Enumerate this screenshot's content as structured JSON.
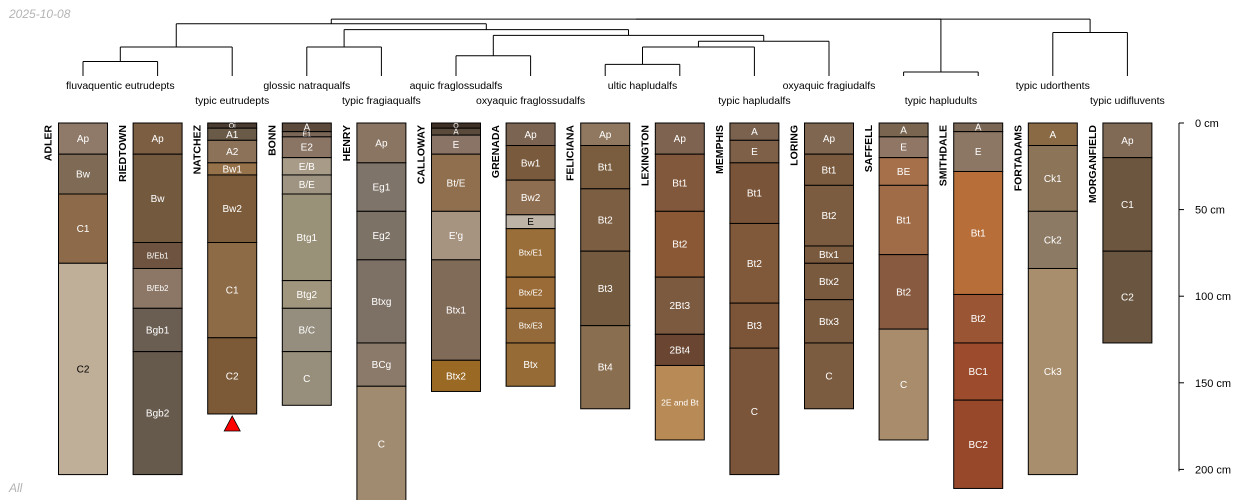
{
  "meta": {
    "date": "2025-10-08",
    "footer": "All"
  },
  "depth_axis": {
    "unit": "cm",
    "max": 200,
    "ticks": [
      0,
      50,
      100,
      150,
      200
    ]
  },
  "dendrogram": {
    "leaf_order": [
      "ADLER",
      "RIEDTOWN",
      "NATCHEZ",
      "BONN",
      "HENRY",
      "CALLOWAY",
      "GRENADA",
      "FELICIANA",
      "LEXINGTON",
      "MEMPHIS",
      "LORING",
      "SAFFELL",
      "SMITHDALE",
      "FORTADAMS",
      "MORGANFIELD"
    ],
    "merges": [
      {
        "left": "ADLER",
        "right": "RIEDTOWN",
        "height": 2.5
      },
      {
        "left": "m0",
        "right": "NATCHEZ",
        "height": 5.0
      },
      {
        "left": "BONN",
        "right": "HENRY",
        "height": 5.0
      },
      {
        "left": "CALLOWAY",
        "right": "GRENADA",
        "height": 3.5
      },
      {
        "left": "FELICIANA",
        "right": "LEXINGTON",
        "height": 2.0
      },
      {
        "left": "m4",
        "right": "MEMPHIS",
        "height": 5.0
      },
      {
        "left": "m5",
        "right": "LORING",
        "height": 6.0
      },
      {
        "left": "m3",
        "right": "m6",
        "height": 7.0
      },
      {
        "left": "m2",
        "right": "m7",
        "height": 8.0
      },
      {
        "left": "SAFFELL",
        "right": "SMITHDALE",
        "height": 0.7
      },
      {
        "left": "FORTADAMS",
        "right": "MORGANFIELD",
        "height": 7.5
      },
      {
        "left": "m1",
        "right": "m8",
        "height": 9.0
      },
      {
        "left": "m11",
        "right": "m9",
        "height": 9.8
      },
      {
        "left": "m10",
        "right": "m12",
        "height": 9.8
      }
    ]
  },
  "taxa": [
    {
      "text": "fluvaquentic eutrudepts",
      "group": [
        0,
        1
      ],
      "row": 1
    },
    {
      "text": "typic eutrudepts",
      "group": [
        2,
        2
      ],
      "row": 2
    },
    {
      "text": "glossic natraqualfs",
      "group": [
        3,
        3
      ],
      "row": 1
    },
    {
      "text": "typic fragiaqualfs",
      "group": [
        4,
        4
      ],
      "row": 2
    },
    {
      "text": "aquic fraglossudalfs",
      "group": [
        5,
        5
      ],
      "row": 1
    },
    {
      "text": "oxyaquic fraglossudalfs",
      "group": [
        6,
        6
      ],
      "row": 2
    },
    {
      "text": "ultic hapludalfs",
      "group": [
        7,
        8
      ],
      "row": 1
    },
    {
      "text": "typic hapludalfs",
      "group": [
        9,
        9
      ],
      "row": 2
    },
    {
      "text": "oxyaquic fragiudalfs",
      "group": [
        10,
        10
      ],
      "row": 1
    },
    {
      "text": "typic hapludults",
      "group": [
        11,
        12
      ],
      "row": 2
    },
    {
      "text": "typic udorthents",
      "group": [
        13,
        13
      ],
      "row": 1
    },
    {
      "text": "typic udifluvents",
      "group": [
        14,
        14
      ],
      "row": 2
    }
  ],
  "profiles": [
    {
      "name": "ADLER",
      "horizons": [
        {
          "name": "Ap",
          "top": 0,
          "bottom": 18,
          "color": "#8f7a69"
        },
        {
          "name": "Bw",
          "top": 18,
          "bottom": 41,
          "color": "#7e6a55"
        },
        {
          "name": "C1",
          "top": 41,
          "bottom": 81,
          "color": "#8c6a4a"
        },
        {
          "name": "C2",
          "top": 81,
          "bottom": 203,
          "color": "#bfae98"
        }
      ]
    },
    {
      "name": "RIEDTOWN",
      "horizons": [
        {
          "name": "Ap",
          "top": 0,
          "bottom": 18,
          "color": "#7c5f43"
        },
        {
          "name": "Bw",
          "top": 18,
          "bottom": 69,
          "color": "#735a3f"
        },
        {
          "name": "B/Eb1",
          "top": 69,
          "bottom": 84,
          "color": "#6e5440"
        },
        {
          "name": "B/Eb2",
          "top": 84,
          "bottom": 107,
          "color": "#8c7766"
        },
        {
          "name": "Bgb1",
          "top": 107,
          "bottom": 132,
          "color": "#6a5d52"
        },
        {
          "name": "Bgb2",
          "top": 132,
          "bottom": 203,
          "color": "#665a4d"
        }
      ]
    },
    {
      "name": "NATCHEZ",
      "marker": true,
      "horizons": [
        {
          "name": "Oi",
          "top": 0,
          "bottom": 3,
          "color": "#4a3c30"
        },
        {
          "name": "A1",
          "top": 3,
          "bottom": 10,
          "color": "#6a5a48"
        },
        {
          "name": "A2",
          "top": 10,
          "bottom": 23,
          "color": "#8b7259"
        },
        {
          "name": "Bw1",
          "top": 23,
          "bottom": 30,
          "color": "#96724a"
        },
        {
          "name": "Bw2",
          "top": 30,
          "bottom": 69,
          "color": "#7c5c3a"
        },
        {
          "name": "C1",
          "top": 69,
          "bottom": 124,
          "color": "#8e6b47"
        },
        {
          "name": "C2",
          "top": 124,
          "bottom": 168,
          "color": "#7c5a38"
        }
      ]
    },
    {
      "name": "BONN",
      "horizons": [
        {
          "name": "A",
          "top": 0,
          "bottom": 5,
          "color": "#5c4a3c"
        },
        {
          "name": "E1",
          "top": 5,
          "bottom": 8,
          "color": "#7a6656"
        },
        {
          "name": "E2",
          "top": 8,
          "bottom": 20,
          "color": "#8a7464"
        },
        {
          "name": "E/B",
          "top": 20,
          "bottom": 30,
          "color": "#a89c88"
        },
        {
          "name": "B/E",
          "top": 30,
          "bottom": 41,
          "color": "#9f9481"
        },
        {
          "name": "Btg1",
          "top": 41,
          "bottom": 91,
          "color": "#9a9278"
        },
        {
          "name": "Btg2",
          "top": 91,
          "bottom": 107,
          "color": "#a0957d"
        },
        {
          "name": "B/C",
          "top": 107,
          "bottom": 132,
          "color": "#958e7f"
        },
        {
          "name": "C",
          "top": 132,
          "bottom": 163,
          "color": "#978f7c"
        }
      ]
    },
    {
      "name": "HENRY",
      "horizons": [
        {
          "name": "Ap",
          "top": 0,
          "bottom": 23,
          "color": "#8a7462"
        },
        {
          "name": "Eg1",
          "top": 23,
          "bottom": 51,
          "color": "#7f7469"
        },
        {
          "name": "Eg2",
          "top": 51,
          "bottom": 79,
          "color": "#7d7266"
        },
        {
          "name": "Btxg",
          "top": 79,
          "bottom": 127,
          "color": "#7d7165"
        },
        {
          "name": "BCg",
          "top": 127,
          "bottom": 152,
          "color": "#8b7a6a"
        },
        {
          "name": "C",
          "top": 152,
          "bottom": 220,
          "color": "#a08b70"
        }
      ]
    },
    {
      "name": "CALLOWAY",
      "horizons": [
        {
          "name": "O",
          "top": 0,
          "bottom": 3,
          "color": "#3e3026"
        },
        {
          "name": "A",
          "top": 3,
          "bottom": 7,
          "color": "#5a4a3c"
        },
        {
          "name": "E",
          "top": 7,
          "bottom": 18,
          "color": "#8a7466"
        },
        {
          "name": "Bt/E",
          "top": 18,
          "bottom": 51,
          "color": "#8f6f4e"
        },
        {
          "name": "E'g",
          "top": 51,
          "bottom": 79,
          "color": "#a69380"
        },
        {
          "name": "Btx1",
          "top": 79,
          "bottom": 137,
          "color": "#806a58"
        },
        {
          "name": "Btx2",
          "top": 137,
          "bottom": 155,
          "color": "#9a6a24"
        }
      ]
    },
    {
      "name": "GRENADA",
      "horizons": [
        {
          "name": "Ap",
          "top": 0,
          "bottom": 13,
          "color": "#7b6552"
        },
        {
          "name": "Bw1",
          "top": 13,
          "bottom": 33,
          "color": "#7a5a3c"
        },
        {
          "name": "Bw2",
          "top": 33,
          "bottom": 53,
          "color": "#8e6e50"
        },
        {
          "name": "E",
          "top": 53,
          "bottom": 61,
          "color": "#bdb3a6"
        },
        {
          "name": "Btx/E1",
          "top": 61,
          "bottom": 89,
          "color": "#9a6e38"
        },
        {
          "name": "Btx/E2",
          "top": 89,
          "bottom": 107,
          "color": "#9a6b36"
        },
        {
          "name": "Btx/E3",
          "top": 107,
          "bottom": 127,
          "color": "#946a3a"
        },
        {
          "name": "Btx",
          "top": 127,
          "bottom": 152,
          "color": "#966b35"
        }
      ]
    },
    {
      "name": "FELICIANA",
      "horizons": [
        {
          "name": "Ap",
          "top": 0,
          "bottom": 13,
          "color": "#907860"
        },
        {
          "name": "Bt1",
          "top": 13,
          "bottom": 38,
          "color": "#7a5c3e"
        },
        {
          "name": "Bt2",
          "top": 38,
          "bottom": 74,
          "color": "#7c5e42"
        },
        {
          "name": "Bt3",
          "top": 74,
          "bottom": 117,
          "color": "#745a3e"
        },
        {
          "name": "Bt4",
          "top": 117,
          "bottom": 165,
          "color": "#8a6e50"
        }
      ]
    },
    {
      "name": "LEXINGTON",
      "horizons": [
        {
          "name": "Ap",
          "top": 0,
          "bottom": 18,
          "color": "#7e6450"
        },
        {
          "name": "Bt1",
          "top": 18,
          "bottom": 51,
          "color": "#82583d"
        },
        {
          "name": "Bt2",
          "top": 51,
          "bottom": 89,
          "color": "#8a5834"
        },
        {
          "name": "2Bt3",
          "top": 89,
          "bottom": 122,
          "color": "#7c5a40"
        },
        {
          "name": "2Bt4",
          "top": 122,
          "bottom": 140,
          "color": "#6a4632"
        },
        {
          "name": "2E and Bt",
          "top": 140,
          "bottom": 183,
          "color": "#b88a55"
        }
      ]
    },
    {
      "name": "MEMPHIS",
      "horizons": [
        {
          "name": "A",
          "top": 0,
          "bottom": 10,
          "color": "#7a624e"
        },
        {
          "name": "E",
          "top": 10,
          "bottom": 23,
          "color": "#7e6048"
        },
        {
          "name": "Bt1",
          "top": 23,
          "bottom": 58,
          "color": "#7a5438"
        },
        {
          "name": "Bt2",
          "top": 58,
          "bottom": 104,
          "color": "#80583a"
        },
        {
          "name": "Bt3",
          "top": 104,
          "bottom": 130,
          "color": "#7c5438"
        },
        {
          "name": "C",
          "top": 130,
          "bottom": 203,
          "color": "#7a553a"
        }
      ]
    },
    {
      "name": "LORING",
      "horizons": [
        {
          "name": "Ap",
          "top": 0,
          "bottom": 18,
          "color": "#7e6650"
        },
        {
          "name": "Bt1",
          "top": 18,
          "bottom": 36,
          "color": "#7a5a3e"
        },
        {
          "name": "Bt2",
          "top": 36,
          "bottom": 71,
          "color": "#7c5c40"
        },
        {
          "name": "Btx1",
          "top": 71,
          "bottom": 81,
          "color": "#7a5a3e"
        },
        {
          "name": "Btx2",
          "top": 81,
          "bottom": 102,
          "color": "#7a5a3e"
        },
        {
          "name": "Btx3",
          "top": 102,
          "bottom": 127,
          "color": "#7a5a3e"
        },
        {
          "name": "C",
          "top": 127,
          "bottom": 165,
          "color": "#7c5c40"
        }
      ]
    },
    {
      "name": "SAFFELL",
      "horizons": [
        {
          "name": "A",
          "top": 0,
          "bottom": 8,
          "color": "#7a6650"
        },
        {
          "name": "E",
          "top": 8,
          "bottom": 20,
          "color": "#907664"
        },
        {
          "name": "BE",
          "top": 20,
          "bottom": 36,
          "color": "#a6704a"
        },
        {
          "name": "Bt1",
          "top": 36,
          "bottom": 76,
          "color": "#a06c48"
        },
        {
          "name": "Bt2",
          "top": 76,
          "bottom": 119,
          "color": "#885a40"
        },
        {
          "name": "C",
          "top": 119,
          "bottom": 183,
          "color": "#a88c6c"
        }
      ]
    },
    {
      "name": "SMITHDALE",
      "horizons": [
        {
          "name": "A",
          "top": 0,
          "bottom": 5,
          "color": "#7a6654"
        },
        {
          "name": "E",
          "top": 5,
          "bottom": 28,
          "color": "#8c7664"
        },
        {
          "name": "Bt1",
          "top": 28,
          "bottom": 99,
          "color": "#b86e38"
        },
        {
          "name": "Bt2",
          "top": 99,
          "bottom": 127,
          "color": "#9a5634"
        },
        {
          "name": "BC1",
          "top": 127,
          "bottom": 160,
          "color": "#9c4c2c"
        },
        {
          "name": "BC2",
          "top": 160,
          "bottom": 211,
          "color": "#98482a"
        }
      ]
    },
    {
      "name": "FORTADAMS",
      "horizons": [
        {
          "name": "A",
          "top": 0,
          "bottom": 13,
          "color": "#8a6a44"
        },
        {
          "name": "Ck1",
          "top": 13,
          "bottom": 51,
          "color": "#8c7458"
        },
        {
          "name": "Ck2",
          "top": 51,
          "bottom": 84,
          "color": "#8c7a64"
        },
        {
          "name": "Ck3",
          "top": 84,
          "bottom": 203,
          "color": "#a88e6c"
        }
      ]
    },
    {
      "name": "MORGANFIELD",
      "horizons": [
        {
          "name": "Ap",
          "top": 0,
          "bottom": 20,
          "color": "#806a56"
        },
        {
          "name": "C1",
          "top": 20,
          "bottom": 74,
          "color": "#6c5640"
        },
        {
          "name": "C2",
          "top": 74,
          "bottom": 127,
          "color": "#6a5640"
        }
      ]
    }
  ]
}
